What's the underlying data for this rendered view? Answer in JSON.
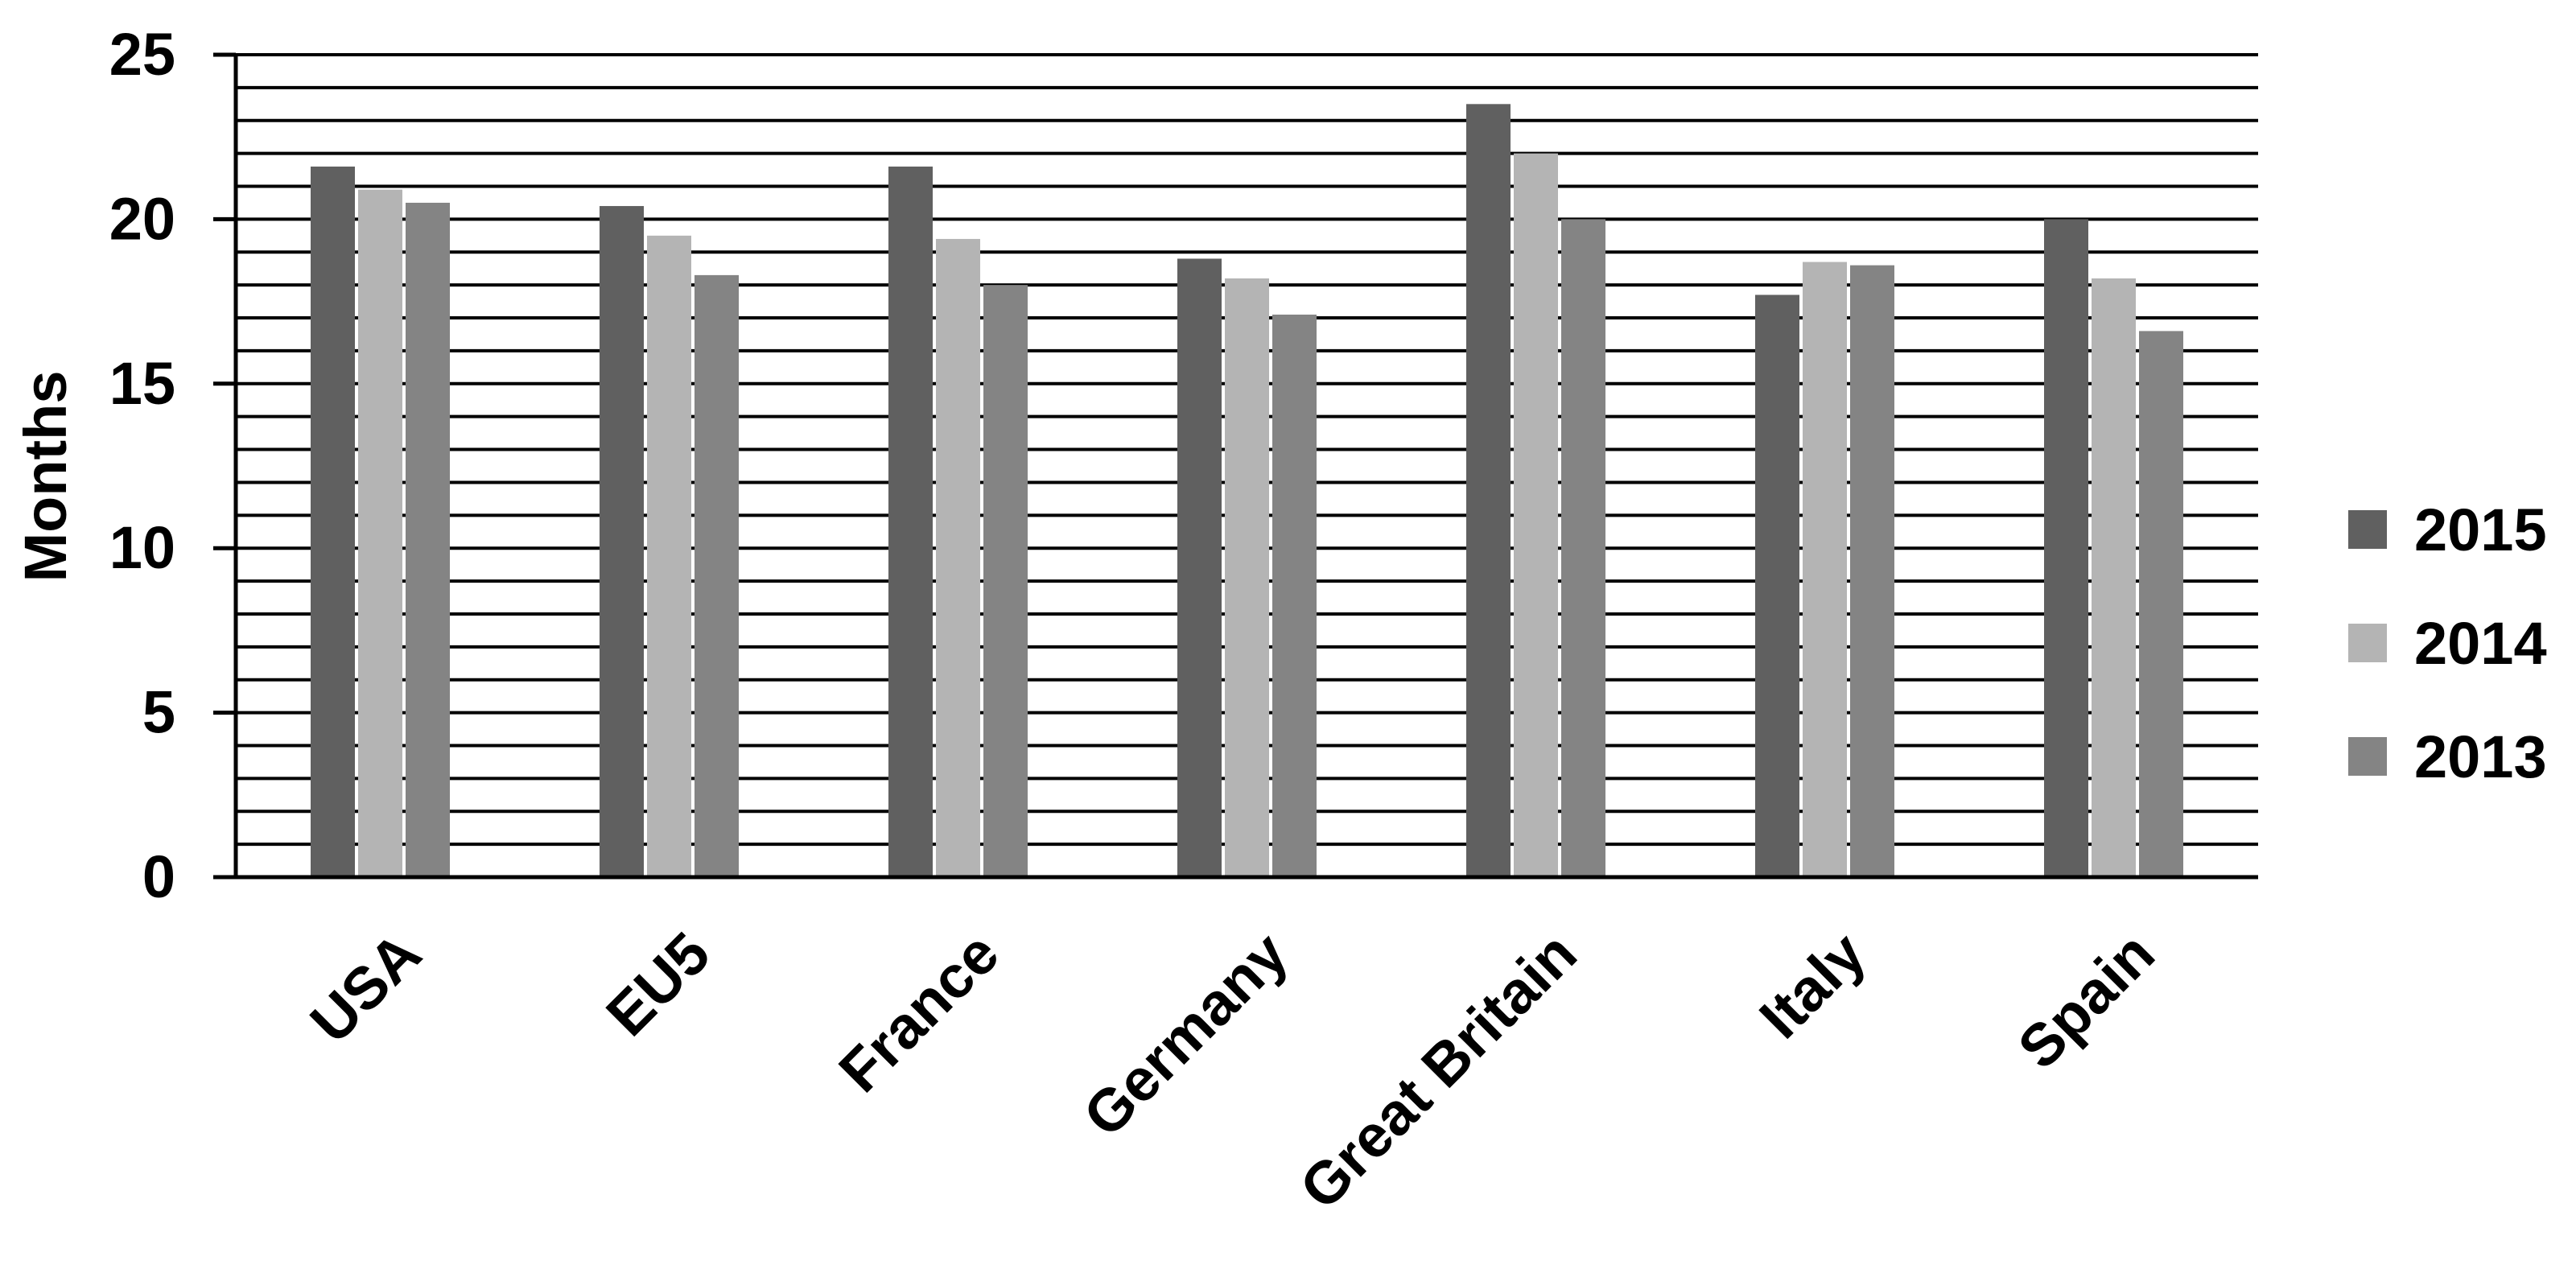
{
  "chart_data": {
    "type": "bar",
    "title": "",
    "xlabel": "",
    "ylabel": "Months",
    "ylim": [
      0,
      25
    ],
    "yticks": [
      0,
      5,
      10,
      15,
      20,
      25
    ],
    "minor_gridline_step": 1,
    "grid": true,
    "legend_position": "right",
    "categories": [
      "USA",
      "EU5",
      "France",
      "Germany",
      "Great Britain",
      "Italy",
      "Spain"
    ],
    "series": [
      {
        "name": "2015",
        "color": "#606060",
        "values": [
          21.6,
          20.4,
          21.6,
          18.8,
          23.5,
          17.7,
          20.0
        ]
      },
      {
        "name": "2014",
        "color": "#b4b4b4",
        "values": [
          20.9,
          19.5,
          19.4,
          18.2,
          22.0,
          18.7,
          18.2
        ]
      },
      {
        "name": "2013",
        "color": "#848484",
        "values": [
          20.5,
          18.3,
          18.0,
          17.1,
          20.0,
          18.6,
          16.6
        ]
      }
    ]
  }
}
